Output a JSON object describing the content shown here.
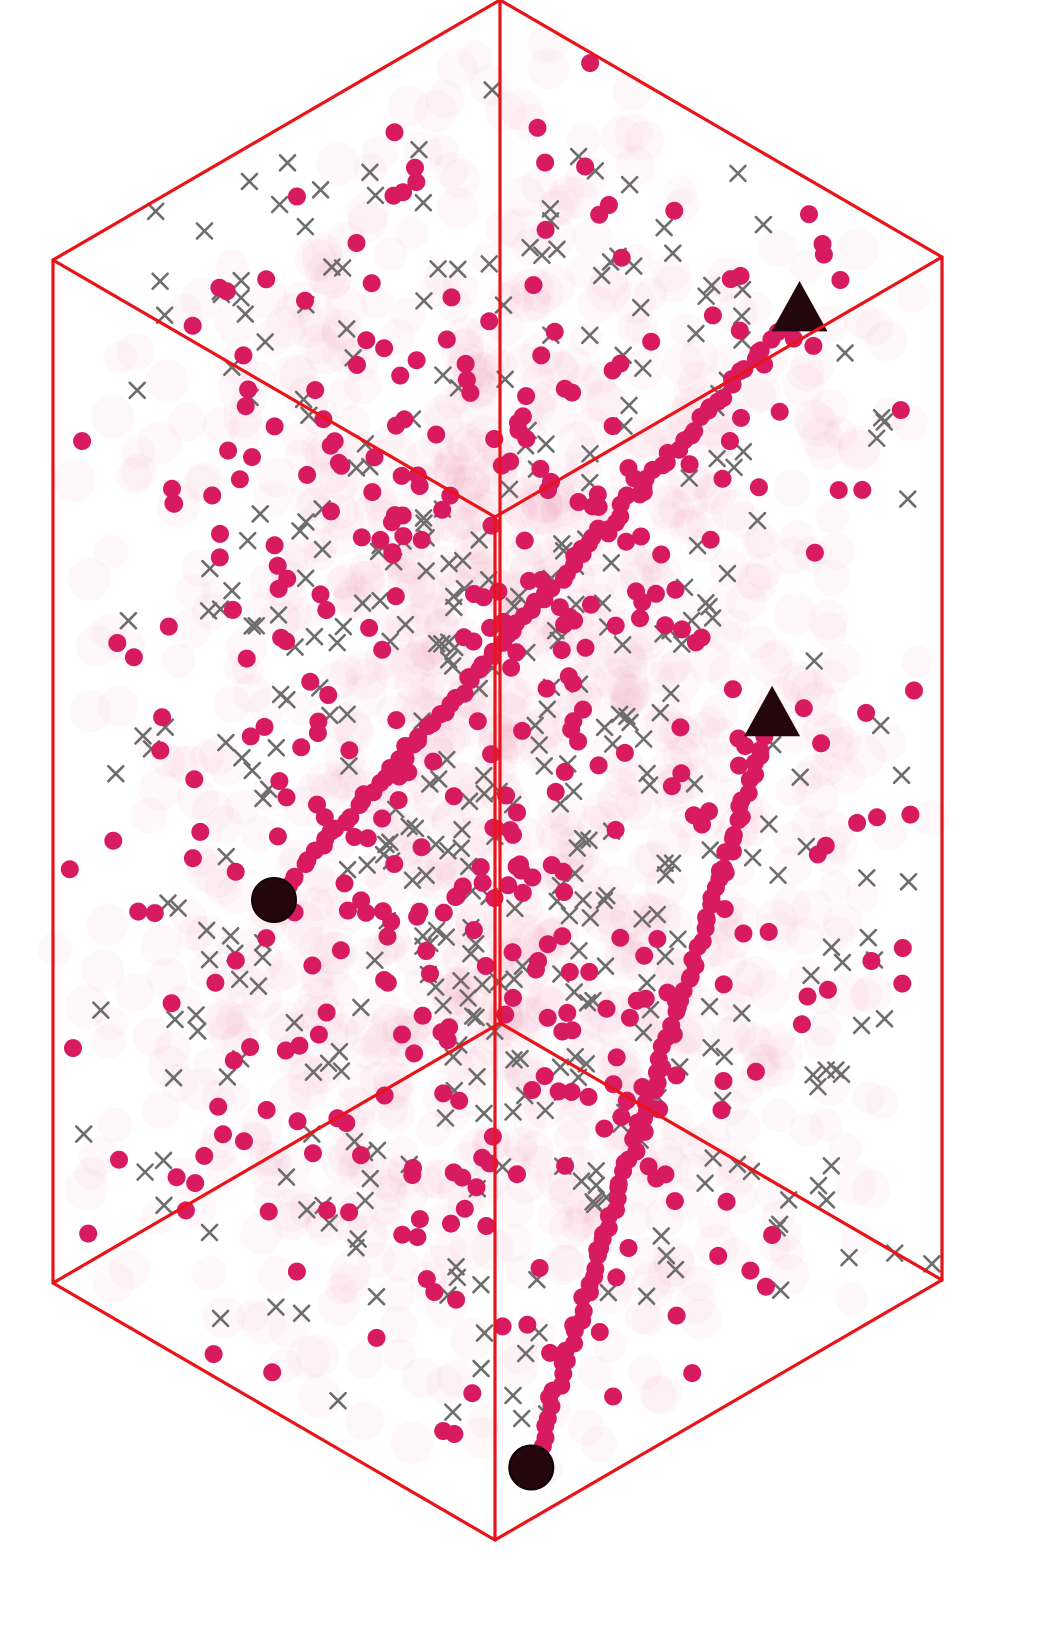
{
  "chart_data": {
    "type": "scatter",
    "title": "",
    "xlabel": "",
    "ylabel": "",
    "grid": false,
    "colors": {
      "box": "#e8141a",
      "circles": "#d81b60",
      "crosses": "#6d6d6d",
      "endpoints": "#23070d",
      "haze": "#ea8ba9"
    },
    "box": {
      "type": "cuboid",
      "corners": [
        [
          0,
          0,
          0
        ],
        [
          1,
          0,
          0
        ],
        [
          0,
          1,
          0
        ],
        [
          1,
          1,
          0
        ],
        [
          0,
          0,
          1
        ],
        [
          1,
          0,
          1
        ],
        [
          0,
          1,
          1
        ],
        [
          1,
          1,
          1
        ]
      ]
    },
    "trajectories": [
      {
        "start": [
          0.1,
          0.0,
          0.18
        ],
        "end": [
          0.0,
          0.65,
          0.62
        ]
      },
      {
        "start": [
          0.5,
          0.5,
          0.0
        ],
        "end": [
          0.1,
          0.98,
          0.78
        ]
      }
    ],
    "marker_counts": {
      "circles": 420,
      "crosses": 420,
      "haze": 1150
    }
  }
}
